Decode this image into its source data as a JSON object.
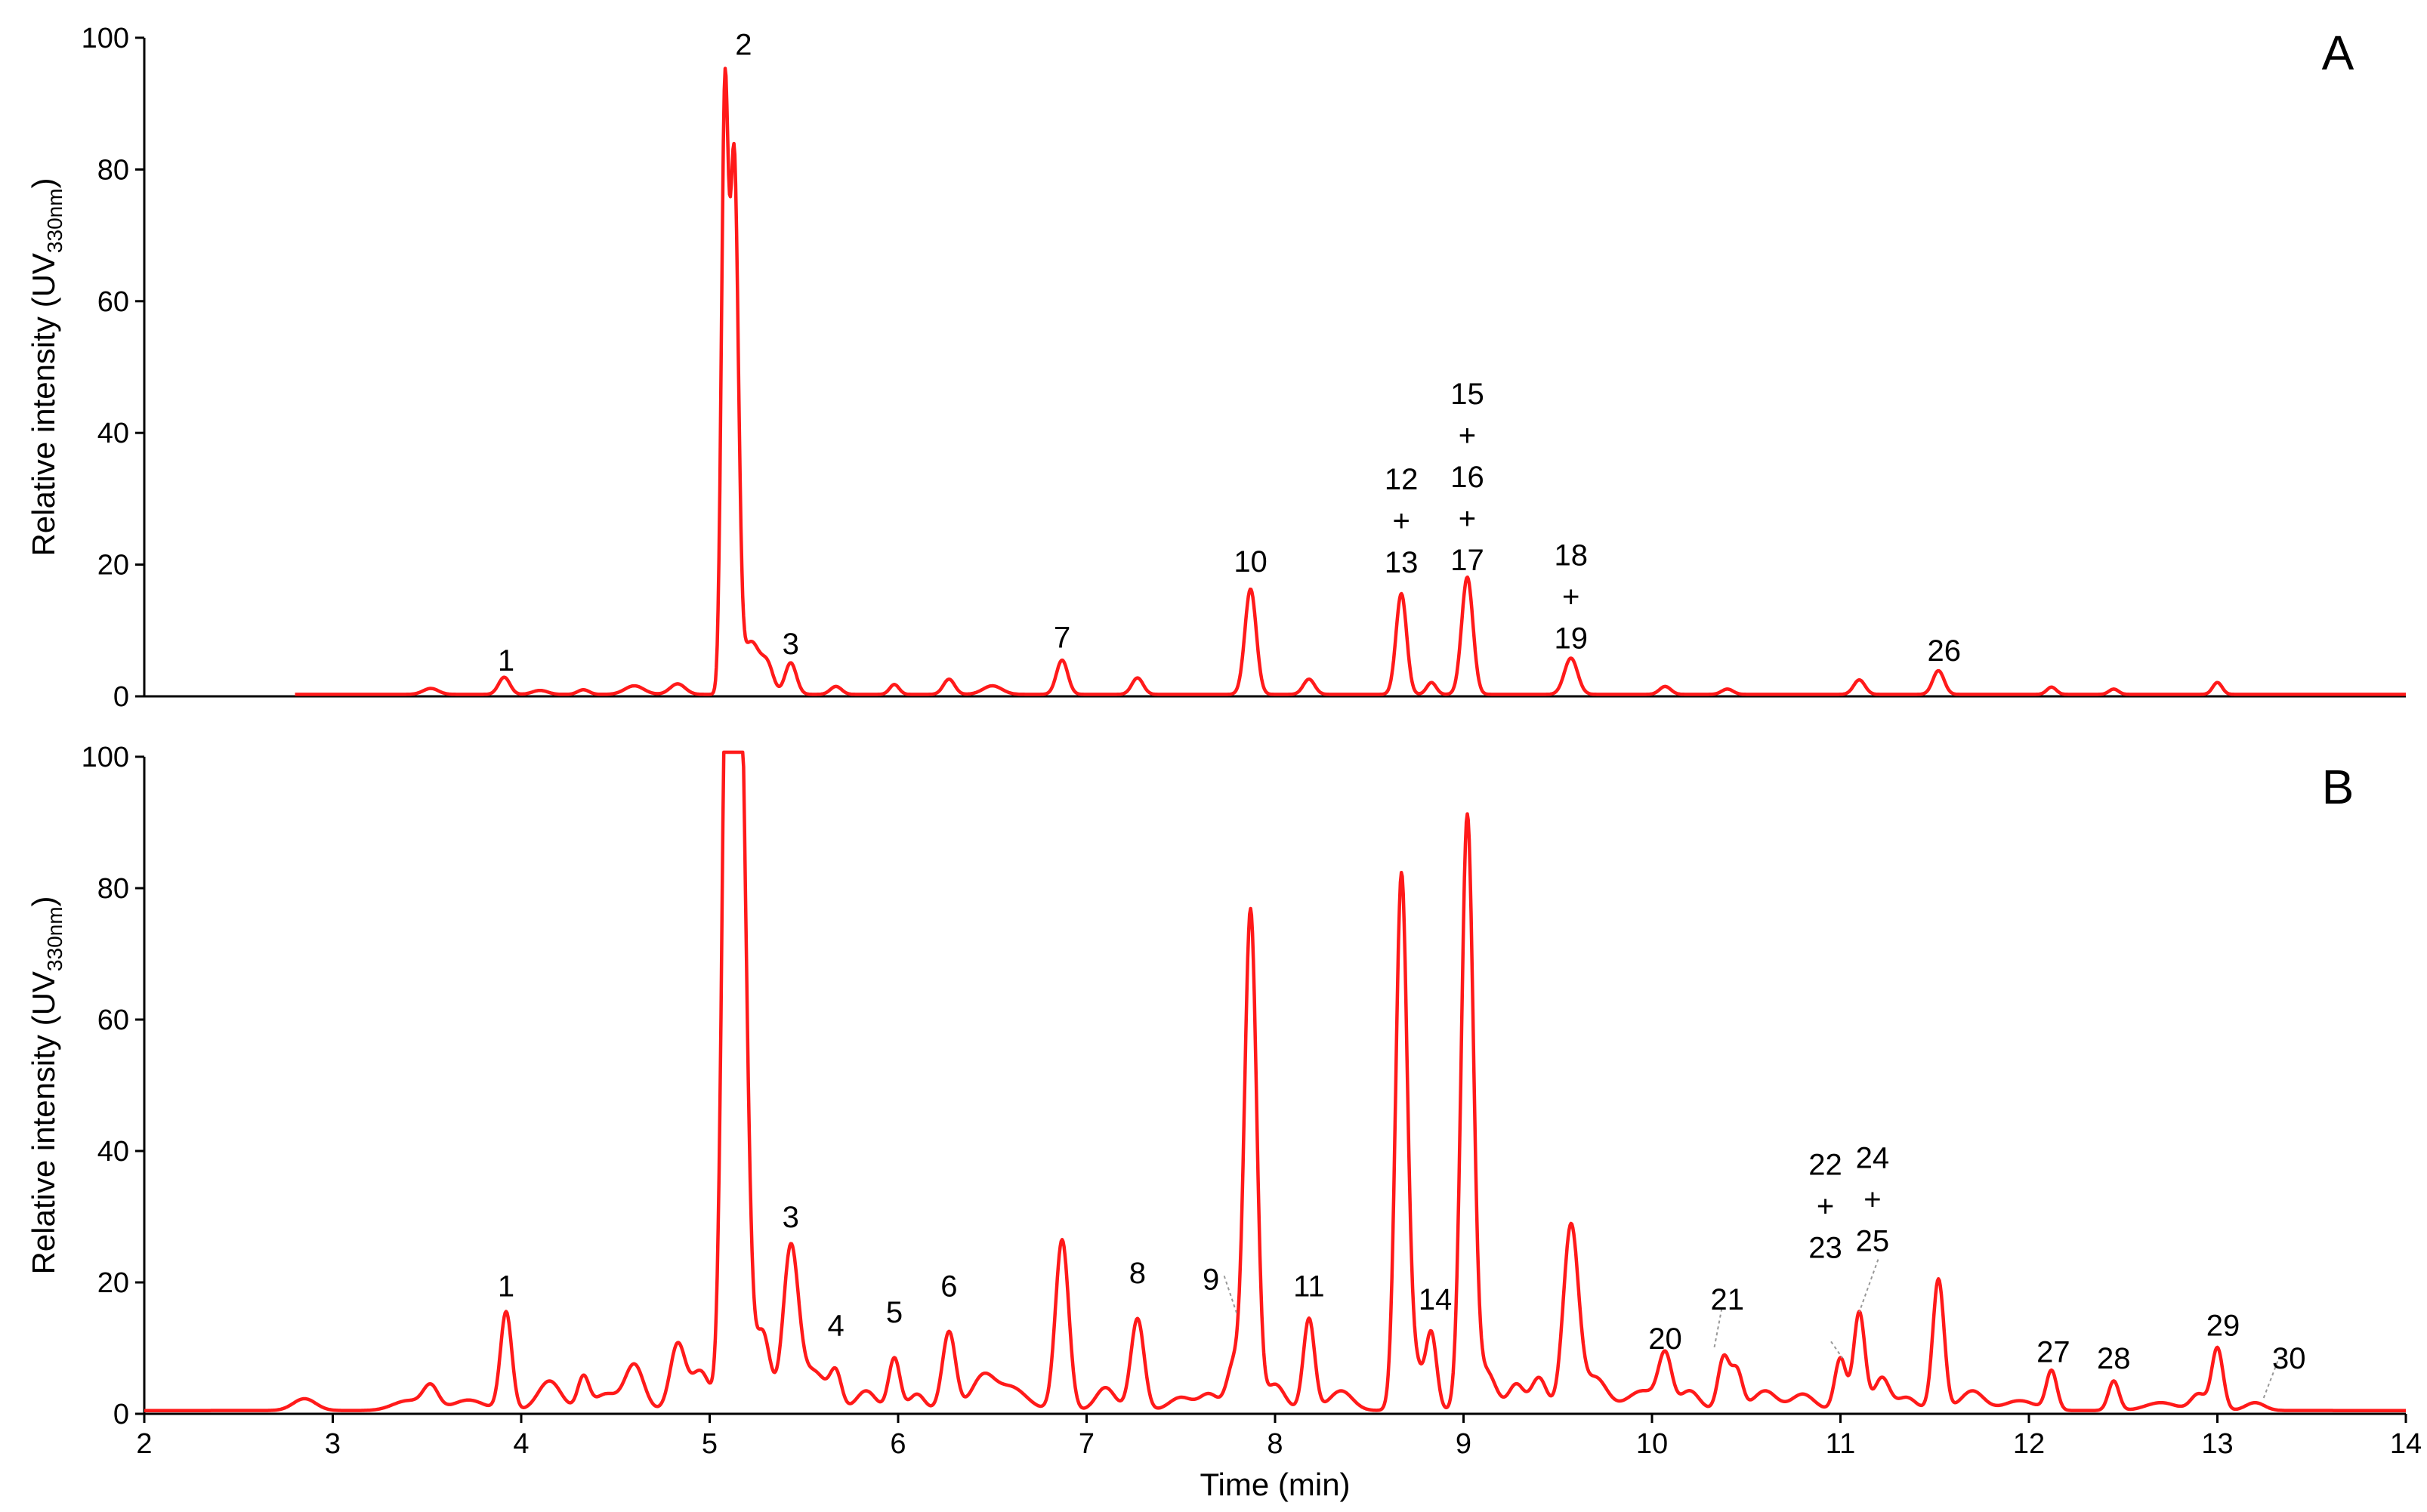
{
  "chart_data": [
    {
      "type": "line",
      "panel": "A",
      "xlabel": "",
      "ylabel_main": "Relative intensity (UV",
      "ylabel_sub": "330nm",
      "ylabel_end": ")",
      "xlim": [
        2,
        14
      ],
      "ylim": [
        0,
        100
      ],
      "yticks": [
        0,
        20,
        40,
        60,
        80,
        100
      ],
      "xticks": [],
      "color": "#ff1a1a",
      "baseline": 0.3,
      "x_start": 2.8,
      "x_end": 14.0,
      "peaks": [
        {
          "x": 3.52,
          "h": 0.9,
          "w": 0.04
        },
        {
          "x": 3.91,
          "h": 2.6,
          "w": 0.03
        },
        {
          "x": 4.1,
          "h": 0.6,
          "w": 0.04
        },
        {
          "x": 4.33,
          "h": 0.7,
          "w": 0.03
        },
        {
          "x": 4.6,
          "h": 1.3,
          "w": 0.05
        },
        {
          "x": 4.83,
          "h": 1.6,
          "w": 0.04
        },
        {
          "x": 5.08,
          "h": 88,
          "w": 0.018
        },
        {
          "x": 5.13,
          "h": 80,
          "w": 0.022
        },
        {
          "x": 5.22,
          "h": 8,
          "w": 0.05
        },
        {
          "x": 5.31,
          "h": 3.5,
          "w": 0.03
        },
        {
          "x": 5.43,
          "h": 4.8,
          "w": 0.03
        },
        {
          "x": 5.67,
          "h": 1.2,
          "w": 0.03
        },
        {
          "x": 5.98,
          "h": 1.5,
          "w": 0.025
        },
        {
          "x": 6.27,
          "h": 2.3,
          "w": 0.03
        },
        {
          "x": 6.5,
          "h": 1.3,
          "w": 0.05
        },
        {
          "x": 6.87,
          "h": 5.2,
          "w": 0.03
        },
        {
          "x": 7.27,
          "h": 2.5,
          "w": 0.03
        },
        {
          "x": 7.87,
          "h": 16,
          "w": 0.03
        },
        {
          "x": 8.18,
          "h": 2.3,
          "w": 0.03
        },
        {
          "x": 8.67,
          "h": 15.3,
          "w": 0.028
        },
        {
          "x": 8.83,
          "h": 1.8,
          "w": 0.025
        },
        {
          "x": 9.02,
          "h": 17.8,
          "w": 0.03
        },
        {
          "x": 9.57,
          "h": 5.5,
          "w": 0.035
        },
        {
          "x": 10.07,
          "h": 1.2,
          "w": 0.03
        },
        {
          "x": 10.4,
          "h": 0.8,
          "w": 0.03
        },
        {
          "x": 11.1,
          "h": 2.2,
          "w": 0.03
        },
        {
          "x": 11.52,
          "h": 3.6,
          "w": 0.03
        },
        {
          "x": 12.12,
          "h": 1.1,
          "w": 0.025
        },
        {
          "x": 12.45,
          "h": 0.8,
          "w": 0.025
        },
        {
          "x": 13.0,
          "h": 1.8,
          "w": 0.025
        }
      ],
      "peak_labels": [
        {
          "lines": [
            "1"
          ],
          "x": 3.92,
          "y": 5.5
        },
        {
          "lines": [
            "2"
          ],
          "x": 5.18,
          "y": 99
        },
        {
          "lines": [
            "3"
          ],
          "x": 5.43,
          "y": 8
        },
        {
          "lines": [
            "7"
          ],
          "x": 6.87,
          "y": 9
        },
        {
          "lines": [
            "10"
          ],
          "x": 7.87,
          "y": 20.5
        },
        {
          "lines": [
            "12",
            "+",
            "13"
          ],
          "x": 8.67,
          "y": 33
        },
        {
          "lines": [
            "15",
            "+",
            "16",
            "+",
            "17"
          ],
          "x": 9.02,
          "y": 46
        },
        {
          "lines": [
            "18",
            "+",
            "19"
          ],
          "x": 9.57,
          "y": 21.5
        },
        {
          "lines": [
            "26"
          ],
          "x": 11.55,
          "y": 7
        }
      ],
      "leaders": []
    },
    {
      "type": "line",
      "panel": "B",
      "xlabel": "Time (min)",
      "ylabel_main": "Relative intensity (UV",
      "ylabel_sub": "330nm",
      "ylabel_end": ")",
      "xlim": [
        2,
        14
      ],
      "ylim": [
        0,
        100
      ],
      "yticks": [
        0,
        20,
        40,
        60,
        80,
        100
      ],
      "xticks": [
        2,
        3,
        4,
        5,
        6,
        7,
        8,
        9,
        10,
        11,
        12,
        13,
        14
      ],
      "color": "#ff1a1a",
      "baseline": 0.5,
      "x_start": 2.0,
      "x_end": 14.0,
      "peaks": [
        {
          "x": 2.85,
          "h": 1.8,
          "w": 0.06
        },
        {
          "x": 3.4,
          "h": 1.5,
          "w": 0.08
        },
        {
          "x": 3.52,
          "h": 3.5,
          "w": 0.04
        },
        {
          "x": 3.72,
          "h": 1.6,
          "w": 0.08
        },
        {
          "x": 3.92,
          "h": 15,
          "w": 0.03
        },
        {
          "x": 4.15,
          "h": 4.5,
          "w": 0.06
        },
        {
          "x": 4.33,
          "h": 5,
          "w": 0.03
        },
        {
          "x": 4.45,
          "h": 2.5,
          "w": 0.06
        },
        {
          "x": 4.6,
          "h": 7,
          "w": 0.05
        },
        {
          "x": 4.83,
          "h": 10,
          "w": 0.04
        },
        {
          "x": 4.95,
          "h": 6,
          "w": 0.05
        },
        {
          "x": 5.1,
          "h": 140,
          "w": 0.03
        },
        {
          "x": 5.16,
          "h": 110,
          "w": 0.035
        },
        {
          "x": 5.28,
          "h": 12,
          "w": 0.04
        },
        {
          "x": 5.43,
          "h": 24,
          "w": 0.04
        },
        {
          "x": 5.55,
          "h": 6,
          "w": 0.07
        },
        {
          "x": 5.67,
          "h": 5,
          "w": 0.03
        },
        {
          "x": 5.83,
          "h": 3,
          "w": 0.05
        },
        {
          "x": 5.98,
          "h": 8,
          "w": 0.03
        },
        {
          "x": 6.1,
          "h": 2.5,
          "w": 0.04
        },
        {
          "x": 6.27,
          "h": 12,
          "w": 0.035
        },
        {
          "x": 6.45,
          "h": 5,
          "w": 0.06
        },
        {
          "x": 6.6,
          "h": 3.5,
          "w": 0.08
        },
        {
          "x": 6.87,
          "h": 26,
          "w": 0.035
        },
        {
          "x": 7.1,
          "h": 3.5,
          "w": 0.05
        },
        {
          "x": 7.27,
          "h": 14,
          "w": 0.035
        },
        {
          "x": 7.5,
          "h": 2,
          "w": 0.06
        },
        {
          "x": 7.65,
          "h": 2.5,
          "w": 0.05
        },
        {
          "x": 7.78,
          "h": 7,
          "w": 0.035
        },
        {
          "x": 7.87,
          "h": 76,
          "w": 0.032
        },
        {
          "x": 8.0,
          "h": 4,
          "w": 0.05
        },
        {
          "x": 8.18,
          "h": 14,
          "w": 0.03
        },
        {
          "x": 8.35,
          "h": 3,
          "w": 0.06
        },
        {
          "x": 8.67,
          "h": 78,
          "w": 0.03
        },
        {
          "x": 8.73,
          "h": 8,
          "w": 0.05
        },
        {
          "x": 8.83,
          "h": 11,
          "w": 0.028
        },
        {
          "x": 9.02,
          "h": 90,
          "w": 0.032
        },
        {
          "x": 9.12,
          "h": 6,
          "w": 0.05
        },
        {
          "x": 9.28,
          "h": 4,
          "w": 0.04
        },
        {
          "x": 9.4,
          "h": 5,
          "w": 0.04
        },
        {
          "x": 9.57,
          "h": 28,
          "w": 0.04
        },
        {
          "x": 9.7,
          "h": 5,
          "w": 0.06
        },
        {
          "x": 9.95,
          "h": 3,
          "w": 0.08
        },
        {
          "x": 10.07,
          "h": 8,
          "w": 0.035
        },
        {
          "x": 10.2,
          "h": 3,
          "w": 0.05
        },
        {
          "x": 10.38,
          "h": 8,
          "w": 0.03
        },
        {
          "x": 10.45,
          "h": 6,
          "w": 0.03
        },
        {
          "x": 10.6,
          "h": 3,
          "w": 0.06
        },
        {
          "x": 10.8,
          "h": 2.5,
          "w": 0.06
        },
        {
          "x": 11.0,
          "h": 8,
          "w": 0.03
        },
        {
          "x": 11.1,
          "h": 15,
          "w": 0.03
        },
        {
          "x": 11.22,
          "h": 5,
          "w": 0.04
        },
        {
          "x": 11.35,
          "h": 2,
          "w": 0.05
        },
        {
          "x": 11.52,
          "h": 20,
          "w": 0.03
        },
        {
          "x": 11.7,
          "h": 3,
          "w": 0.06
        },
        {
          "x": 11.95,
          "h": 1.5,
          "w": 0.08
        },
        {
          "x": 12.12,
          "h": 6,
          "w": 0.028
        },
        {
          "x": 12.45,
          "h": 4.5,
          "w": 0.028
        },
        {
          "x": 12.7,
          "h": 1.2,
          "w": 0.08
        },
        {
          "x": 12.9,
          "h": 2.5,
          "w": 0.04
        },
        {
          "x": 13.0,
          "h": 9.5,
          "w": 0.03
        },
        {
          "x": 13.2,
          "h": 1.2,
          "w": 0.05
        }
      ],
      "peak_labels": [
        {
          "lines": [
            "1"
          ],
          "x": 3.92,
          "y": 19.5
        },
        {
          "lines": [
            "3"
          ],
          "x": 5.43,
          "y": 30
        },
        {
          "lines": [
            "4"
          ],
          "x": 5.67,
          "y": 13.5
        },
        {
          "lines": [
            "5"
          ],
          "x": 5.98,
          "y": 15.5
        },
        {
          "lines": [
            "6"
          ],
          "x": 6.27,
          "y": 19.5
        },
        {
          "lines": [
            "8"
          ],
          "x": 7.27,
          "y": 21.5
        },
        {
          "lines": [
            "9"
          ],
          "x": 7.66,
          "y": 20.5
        },
        {
          "lines": [
            "11"
          ],
          "x": 8.18,
          "y": 19.5
        },
        {
          "lines": [
            "14"
          ],
          "x": 8.85,
          "y": 17.5
        },
        {
          "lines": [
            "20"
          ],
          "x": 10.07,
          "y": 11.5
        },
        {
          "lines": [
            "21"
          ],
          "x": 10.4,
          "y": 17.5
        },
        {
          "lines": [
            "22",
            "+",
            "23"
          ],
          "x": 10.92,
          "y": 38
        },
        {
          "lines": [
            "24",
            "+",
            "25"
          ],
          "x": 11.17,
          "y": 39
        },
        {
          "lines": [
            "27"
          ],
          "x": 12.13,
          "y": 9.5
        },
        {
          "lines": [
            "28"
          ],
          "x": 12.45,
          "y": 8.5
        },
        {
          "lines": [
            "29"
          ],
          "x": 13.03,
          "y": 13.5
        },
        {
          "lines": [
            "30"
          ],
          "x": 13.38,
          "y": 8.5
        }
      ],
      "leaders": [
        {
          "x1": 7.73,
          "y1": 21,
          "x2": 7.8,
          "y2": 15
        },
        {
          "x1": 10.37,
          "y1": 16,
          "x2": 10.33,
          "y2": 10
        },
        {
          "x1": 10.95,
          "y1": 11,
          "x2": 11.01,
          "y2": 8.5
        },
        {
          "x1": 11.2,
          "y1": 23.5,
          "x2": 11.1,
          "y2": 15.5
        },
        {
          "x1": 13.32,
          "y1": 8,
          "x2": 13.24,
          "y2": 2
        }
      ]
    }
  ]
}
